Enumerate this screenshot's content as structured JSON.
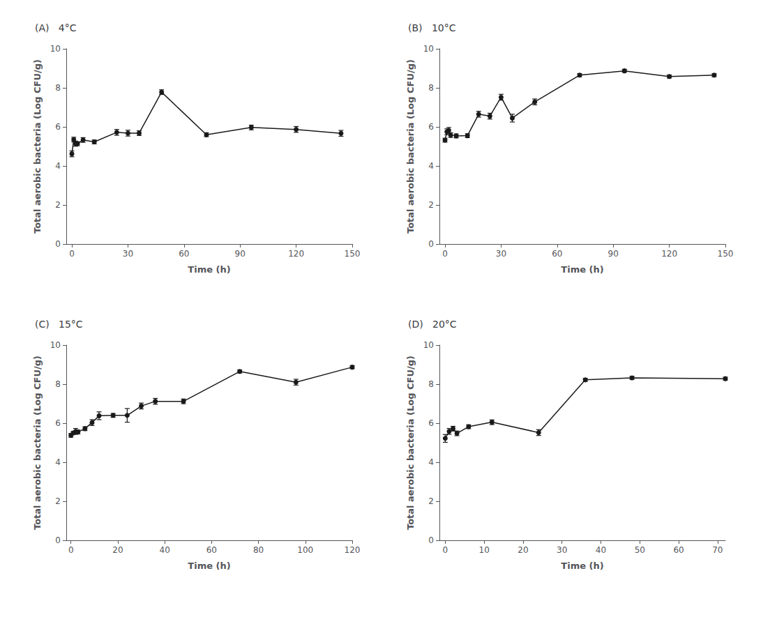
{
  "chart_data": [
    {
      "type": "line",
      "title": "(A)   4°C",
      "xlabel": "Time (h)",
      "ylabel": "Total aerobic bacteria (Log CFU/g)",
      "color": "#1a1a1a",
      "marker": "circle",
      "grid": false,
      "xlim": [
        -3,
        150
      ],
      "ylim": [
        0,
        10
      ],
      "xticks": [
        0,
        30,
        60,
        90,
        120,
        150
      ],
      "yticks": [
        0,
        2,
        4,
        6,
        8,
        10
      ],
      "x": [
        0,
        1,
        2,
        3,
        6,
        12,
        24,
        30,
        36,
        48,
        72,
        96,
        120,
        144
      ],
      "values": [
        4.62,
        5.35,
        5.14,
        5.14,
        5.33,
        5.23,
        5.72,
        5.68,
        5.68,
        7.78,
        5.6,
        5.97,
        5.87,
        5.67
      ],
      "yerr": [
        0.15,
        0.12,
        0.13,
        0.1,
        0.12,
        0.1,
        0.15,
        0.15,
        0.12,
        0.12,
        0.1,
        0.12,
        0.15,
        0.15
      ]
    },
    {
      "type": "line",
      "title": "(B)   10°C",
      "xlabel": "Time (h)",
      "ylabel": "Total aerobic bacteria (Log CFU/g)",
      "color": "#1a1a1a",
      "marker": "circle",
      "grid": false,
      "xlim": [
        -3,
        150
      ],
      "ylim": [
        0,
        10
      ],
      "xticks": [
        0,
        30,
        60,
        90,
        120,
        150
      ],
      "yticks": [
        0,
        2,
        4,
        6,
        8,
        10
      ],
      "x": [
        0,
        1,
        2,
        3,
        6,
        12,
        18,
        24,
        30,
        36,
        48,
        72,
        96,
        120,
        144
      ],
      "values": [
        5.32,
        5.75,
        5.82,
        5.58,
        5.54,
        5.55,
        6.65,
        6.55,
        7.52,
        6.45,
        7.28,
        8.65,
        8.87,
        8.58,
        8.65
      ],
      "yerr": [
        0.1,
        0.15,
        0.15,
        0.12,
        0.1,
        0.1,
        0.15,
        0.15,
        0.15,
        0.2,
        0.15,
        0.08,
        0.08,
        0.08,
        0.08
      ]
    },
    {
      "type": "line",
      "title": "(C)   15°C",
      "xlabel": "Time (h)",
      "ylabel": "Total aerobic bacteria (Log CFU/g)",
      "color": "#1a1a1a",
      "marker": "circle",
      "grid": false,
      "xlim": [
        -2,
        120
      ],
      "ylim": [
        0,
        10
      ],
      "xticks": [
        0,
        20,
        40,
        60,
        80,
        100,
        120
      ],
      "yticks": [
        0,
        2,
        4,
        6,
        8,
        10
      ],
      "x": [
        0,
        1,
        2,
        3,
        6,
        9,
        12,
        18,
        24,
        30,
        36,
        48,
        72,
        96,
        120
      ],
      "values": [
        5.38,
        5.5,
        5.58,
        5.55,
        5.72,
        6.03,
        6.38,
        6.4,
        6.4,
        6.88,
        7.12,
        7.12,
        8.65,
        8.1,
        8.87
      ],
      "yerr": [
        0.1,
        0.08,
        0.15,
        0.1,
        0.1,
        0.15,
        0.2,
        0.1,
        0.35,
        0.15,
        0.15,
        0.12,
        0.08,
        0.15,
        0.08
      ]
    },
    {
      "type": "line",
      "title": "(D)   20°C",
      "xlabel": "Time (h)",
      "ylabel": "Total aerobic bacteria (Log CFU/g)",
      "color": "#1a1a1a",
      "marker": "circle",
      "grid": false,
      "xlim": [
        -1.5,
        72
      ],
      "ylim": [
        0,
        10
      ],
      "xticks": [
        0,
        10,
        20,
        30,
        40,
        50,
        60,
        70
      ],
      "yticks": [
        0,
        2,
        4,
        6,
        8,
        10
      ],
      "x": [
        0,
        1,
        2,
        3,
        6,
        12,
        24,
        36,
        48,
        72
      ],
      "values": [
        5.22,
        5.58,
        5.72,
        5.48,
        5.82,
        6.05,
        5.52,
        8.22,
        8.32,
        8.28
      ],
      "yerr": [
        0.2,
        0.15,
        0.12,
        0.12,
        0.1,
        0.12,
        0.15,
        0.08,
        0.08,
        0.08
      ]
    }
  ]
}
